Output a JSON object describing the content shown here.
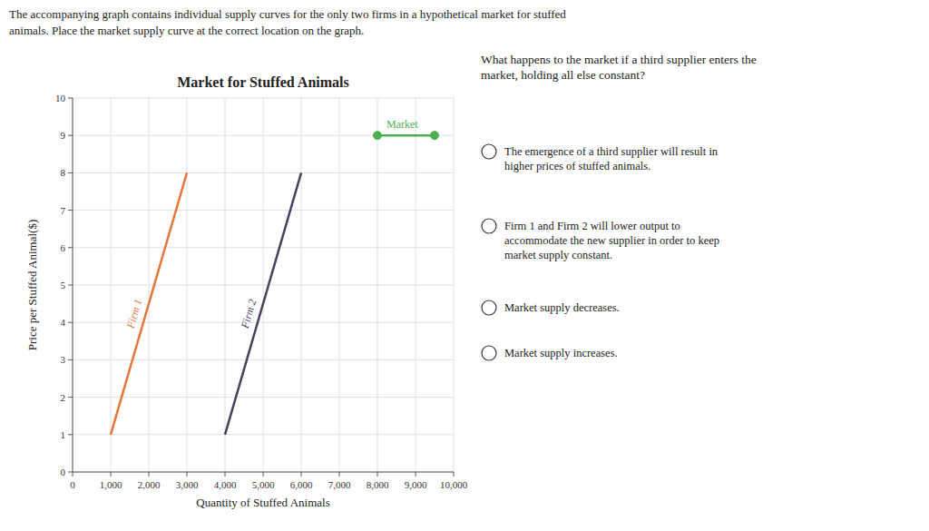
{
  "chart_data": {
    "type": "line",
    "title": "Market for Stuffed Animals",
    "x_label": "Quantity of Stuffed Animals",
    "y_label": "Price per Stuffed Animal($)",
    "xlim": [
      0,
      10000
    ],
    "ylim": [
      0,
      10
    ],
    "xticks": [
      0,
      {
        "value": 1000,
        "label": "1,000"
      },
      {
        "value": 2000,
        "label": "2,000"
      },
      {
        "value": 3000,
        "label": "3,000"
      },
      {
        "value": 4000,
        "label": "4,000"
      },
      {
        "value": 5000,
        "label": "5,000"
      },
      {
        "value": 6000,
        "label": "6,000"
      },
      {
        "value": 7000,
        "label": "7,000"
      },
      {
        "value": 8000,
        "label": "8,000"
      },
      {
        "value": 9000,
        "label": "9,000"
      },
      {
        "value": 10000,
        "label": "10,000"
      }
    ],
    "yticks": [
      0,
      1,
      2,
      3,
      4,
      5,
      6,
      7,
      8,
      9,
      10
    ],
    "grid": true,
    "series": [
      {
        "name": "Firm 1",
        "color": "#E8763A",
        "x": [
          1000,
          3000
        ],
        "values": [
          1,
          8
        ]
      },
      {
        "name": "Firm 2",
        "color": "#4A3F5C",
        "x": [
          4000,
          6000
        ],
        "values": [
          1,
          8
        ]
      },
      {
        "name": "Market",
        "color": "#4CAF50",
        "x": [
          8000,
          9500
        ],
        "values": [
          9,
          9
        ],
        "marker": "circle"
      }
    ],
    "header": [
      "The accompanying graph contains individual supply curves for the only two firms in a hypothetical market for stuffed",
      "animals. Place the market supply curve at the correct location on the graph."
    ],
    "question": "What happens to the market if a third supplier enters the\nmarket, holding all else constant?",
    "options": [
      "The emergence of a third supplier will result in\nhigher prices of stuffed animals.",
      "Firm 1 and Firm 2 will lower output to\naccommodate the new supplier in order to keep\nmarket supply constant.",
      "Market supply decreases.",
      "Market supply increases."
    ]
  }
}
